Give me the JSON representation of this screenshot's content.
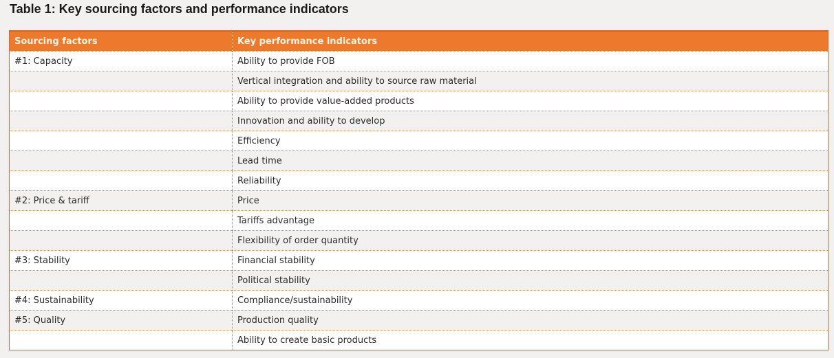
{
  "page": {
    "title": "Table 1: Key sourcing factors and performance indicators"
  },
  "table": {
    "headers": [
      "Sourcing factors",
      "Key performance indicators"
    ],
    "rows": [
      {
        "factor": "#1: Capacity",
        "kpi": "Ability to provide FOB"
      },
      {
        "factor": "",
        "kpi": "Vertical integration and ability to source raw material"
      },
      {
        "factor": "",
        "kpi": "Ability to provide value-added products"
      },
      {
        "factor": "",
        "kpi": "Innovation and ability to develop"
      },
      {
        "factor": "",
        "kpi": "Efficiency"
      },
      {
        "factor": "",
        "kpi": "Lead time"
      },
      {
        "factor": "",
        "kpi": "Reliability"
      },
      {
        "factor": "#2: Price & tariff",
        "kpi": "Price"
      },
      {
        "factor": "",
        "kpi": "Tariffs advantage"
      },
      {
        "factor": "",
        "kpi": "Flexibility of order quantity"
      },
      {
        "factor": "#3: Stability",
        "kpi": "Financial stability"
      },
      {
        "factor": "",
        "kpi": "Political stability"
      },
      {
        "factor": "#4: Sustainability",
        "kpi": "Compliance/sustainability"
      },
      {
        "factor": "#5: Quality",
        "kpi": "Production quality"
      },
      {
        "factor": "",
        "kpi": "Ability to create basic products"
      }
    ]
  },
  "colors": {
    "page_bg": "#F2F1EF",
    "title_text": "#1A1A1A",
    "header_bg": "#ED7A2C",
    "header_text": "#FDF4E9",
    "header_divider": "#C96318",
    "stripe_bg": "#F2F1F0",
    "row_bg": "#FFFFFF",
    "dotted_border": "#C48A5C",
    "outer_border": "#BE7445",
    "top_border": "#D4660E",
    "frame_glow": "#F8E8D9",
    "cell_text": "#2B2B2B"
  }
}
